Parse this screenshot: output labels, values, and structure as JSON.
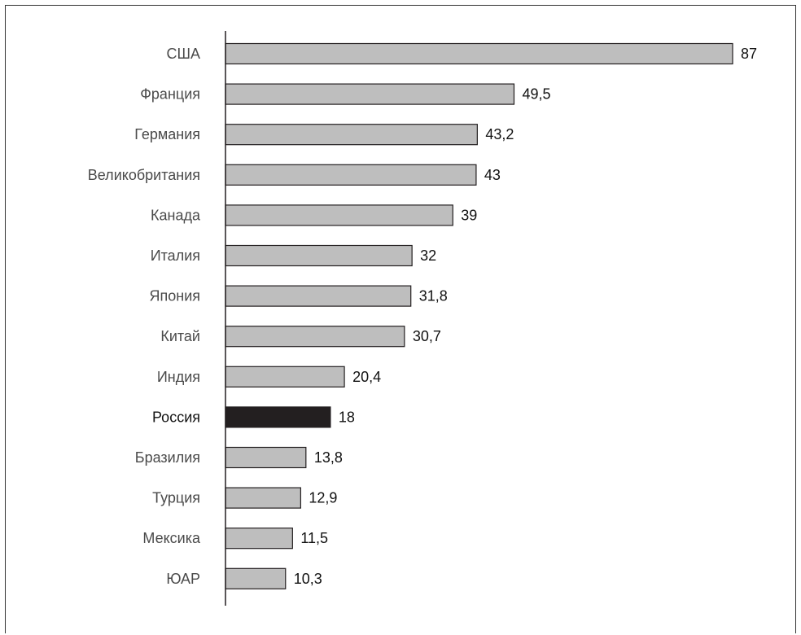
{
  "chart_data": {
    "type": "bar",
    "orientation": "horizontal",
    "categories": [
      "США",
      "Франция",
      "Германия",
      "Великобритания",
      "Канада",
      "Италия",
      "Япония",
      "Китай",
      "Индия",
      "Россия",
      "Бразилия",
      "Турция",
      "Мексика",
      "ЮАР"
    ],
    "values": [
      87,
      49.5,
      43.2,
      43,
      39,
      32,
      31.8,
      30.7,
      20.4,
      18,
      13.8,
      12.9,
      11.5,
      10.3
    ],
    "value_labels": [
      "87",
      "49,5",
      "43,2",
      "43",
      "39",
      "32",
      "31,8",
      "30,7",
      "20,4",
      "18",
      "13,8",
      "12,9",
      "11,5",
      "10,3"
    ],
    "highlight": "Россия",
    "colors": {
      "bar": "#bebebe",
      "highlight": "#231f20",
      "outline": "#231f20"
    },
    "title": "",
    "xlabel": "",
    "ylabel": "",
    "xlim": [
      0,
      87
    ],
    "grid": false,
    "legend": "none"
  }
}
